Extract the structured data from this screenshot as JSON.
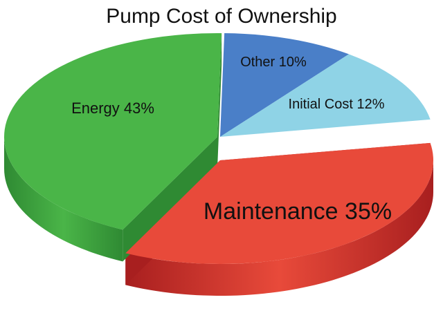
{
  "chart_data": {
    "type": "pie",
    "title": "Pump Cost of Ownership",
    "style": "3d-exploded",
    "slices": [
      {
        "label": "Other",
        "value": 10,
        "display": "Other 10%",
        "color": "#4a7fc8",
        "side_color": "#2f5f9f"
      },
      {
        "label": "Initial Cost",
        "value": 12,
        "display": "Initial Cost 12%",
        "color": "#8fd3e6",
        "side_color": "#4fb0c6"
      },
      {
        "label": "Maintenance",
        "value": 35,
        "display": "Maintenance 35%",
        "color": "#e84a3a",
        "side_color": "#a81f1f"
      },
      {
        "label": "Energy",
        "value": 43,
        "display": "Energy 43%",
        "color": "#4ab548",
        "side_color": "#2f8a33"
      }
    ]
  }
}
